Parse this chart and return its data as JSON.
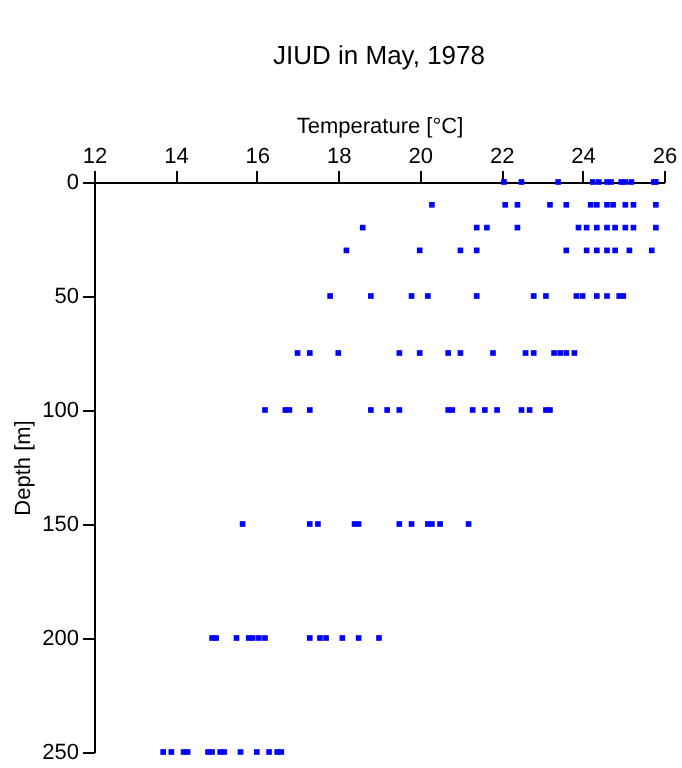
{
  "chart_data": {
    "type": "scatter",
    "title": "JIUD in May, 1978",
    "xlabel": "Temperature [°C]",
    "ylabel": "Depth [m]",
    "xlim": [
      12,
      26
    ],
    "xticks": [
      12,
      14,
      16,
      18,
      20,
      22,
      24,
      26
    ],
    "ylim": [
      250,
      0
    ],
    "yticks": [
      0,
      50,
      100,
      150,
      200,
      250
    ],
    "grid": false,
    "marker": "square",
    "series": [
      {
        "color": "#0000ff",
        "x": [
          22.07,
          22.5,
          23.4,
          24.25,
          24.4,
          24.6,
          24.7,
          24.95,
          25.05,
          25.2,
          25.75,
          25.8,
          20.3,
          22.1,
          22.4,
          23.2,
          23.6,
          24.2,
          24.35,
          24.6,
          24.75,
          25.05,
          25.25,
          25.8,
          18.6,
          21.4,
          21.65,
          22.4,
          23.9,
          24.1,
          24.35,
          24.6,
          24.8,
          25.05,
          25.25,
          25.8,
          18.2,
          20.0,
          21.0,
          21.4,
          23.6,
          24.1,
          24.35,
          24.6,
          24.8,
          25.15,
          25.7,
          17.8,
          18.8,
          19.8,
          20.2,
          21.4,
          22.8,
          23.1,
          23.85,
          24.0,
          24.35,
          24.6,
          24.9,
          25.0,
          17.0,
          17.3,
          18.0,
          19.5,
          20.0,
          20.7,
          21.0,
          21.8,
          22.6,
          22.8,
          23.3,
          23.45,
          23.6,
          23.8,
          16.2,
          16.7,
          16.8,
          17.3,
          18.8,
          19.2,
          19.5,
          20.7,
          20.8,
          21.3,
          21.6,
          21.9,
          22.5,
          22.7,
          23.1,
          23.2,
          15.65,
          17.3,
          17.5,
          18.4,
          18.5,
          19.5,
          19.8,
          20.2,
          20.3,
          20.5,
          21.2,
          14.9,
          15.0,
          15.5,
          15.8,
          15.9,
          16.05,
          16.2,
          17.3,
          17.55,
          17.7,
          18.1,
          18.5,
          19.0,
          13.7,
          13.9,
          14.2,
          14.3,
          14.8,
          14.9,
          15.1,
          15.2,
          15.6,
          16.0,
          16.3,
          16.5,
          16.6
        ],
        "values": [
          0,
          0,
          0,
          0,
          0,
          0,
          0,
          0,
          0,
          0,
          0,
          0,
          10,
          10,
          10,
          10,
          10,
          10,
          10,
          10,
          10,
          10,
          10,
          10,
          20,
          20,
          20,
          20,
          20,
          20,
          20,
          20,
          20,
          20,
          20,
          20,
          30,
          30,
          30,
          30,
          30,
          30,
          30,
          30,
          30,
          30,
          30,
          50,
          50,
          50,
          50,
          50,
          50,
          50,
          50,
          50,
          50,
          50,
          50,
          50,
          75,
          75,
          75,
          75,
          75,
          75,
          75,
          75,
          75,
          75,
          75,
          75,
          75,
          75,
          100,
          100,
          100,
          100,
          100,
          100,
          100,
          100,
          100,
          100,
          100,
          100,
          100,
          100,
          100,
          100,
          150,
          150,
          150,
          150,
          150,
          150,
          150,
          150,
          150,
          150,
          150,
          200,
          200,
          200,
          200,
          200,
          200,
          200,
          200,
          200,
          200,
          200,
          200,
          200,
          250,
          250,
          250,
          250,
          250,
          250,
          250,
          250,
          250,
          250,
          250,
          250,
          250
        ]
      }
    ]
  }
}
